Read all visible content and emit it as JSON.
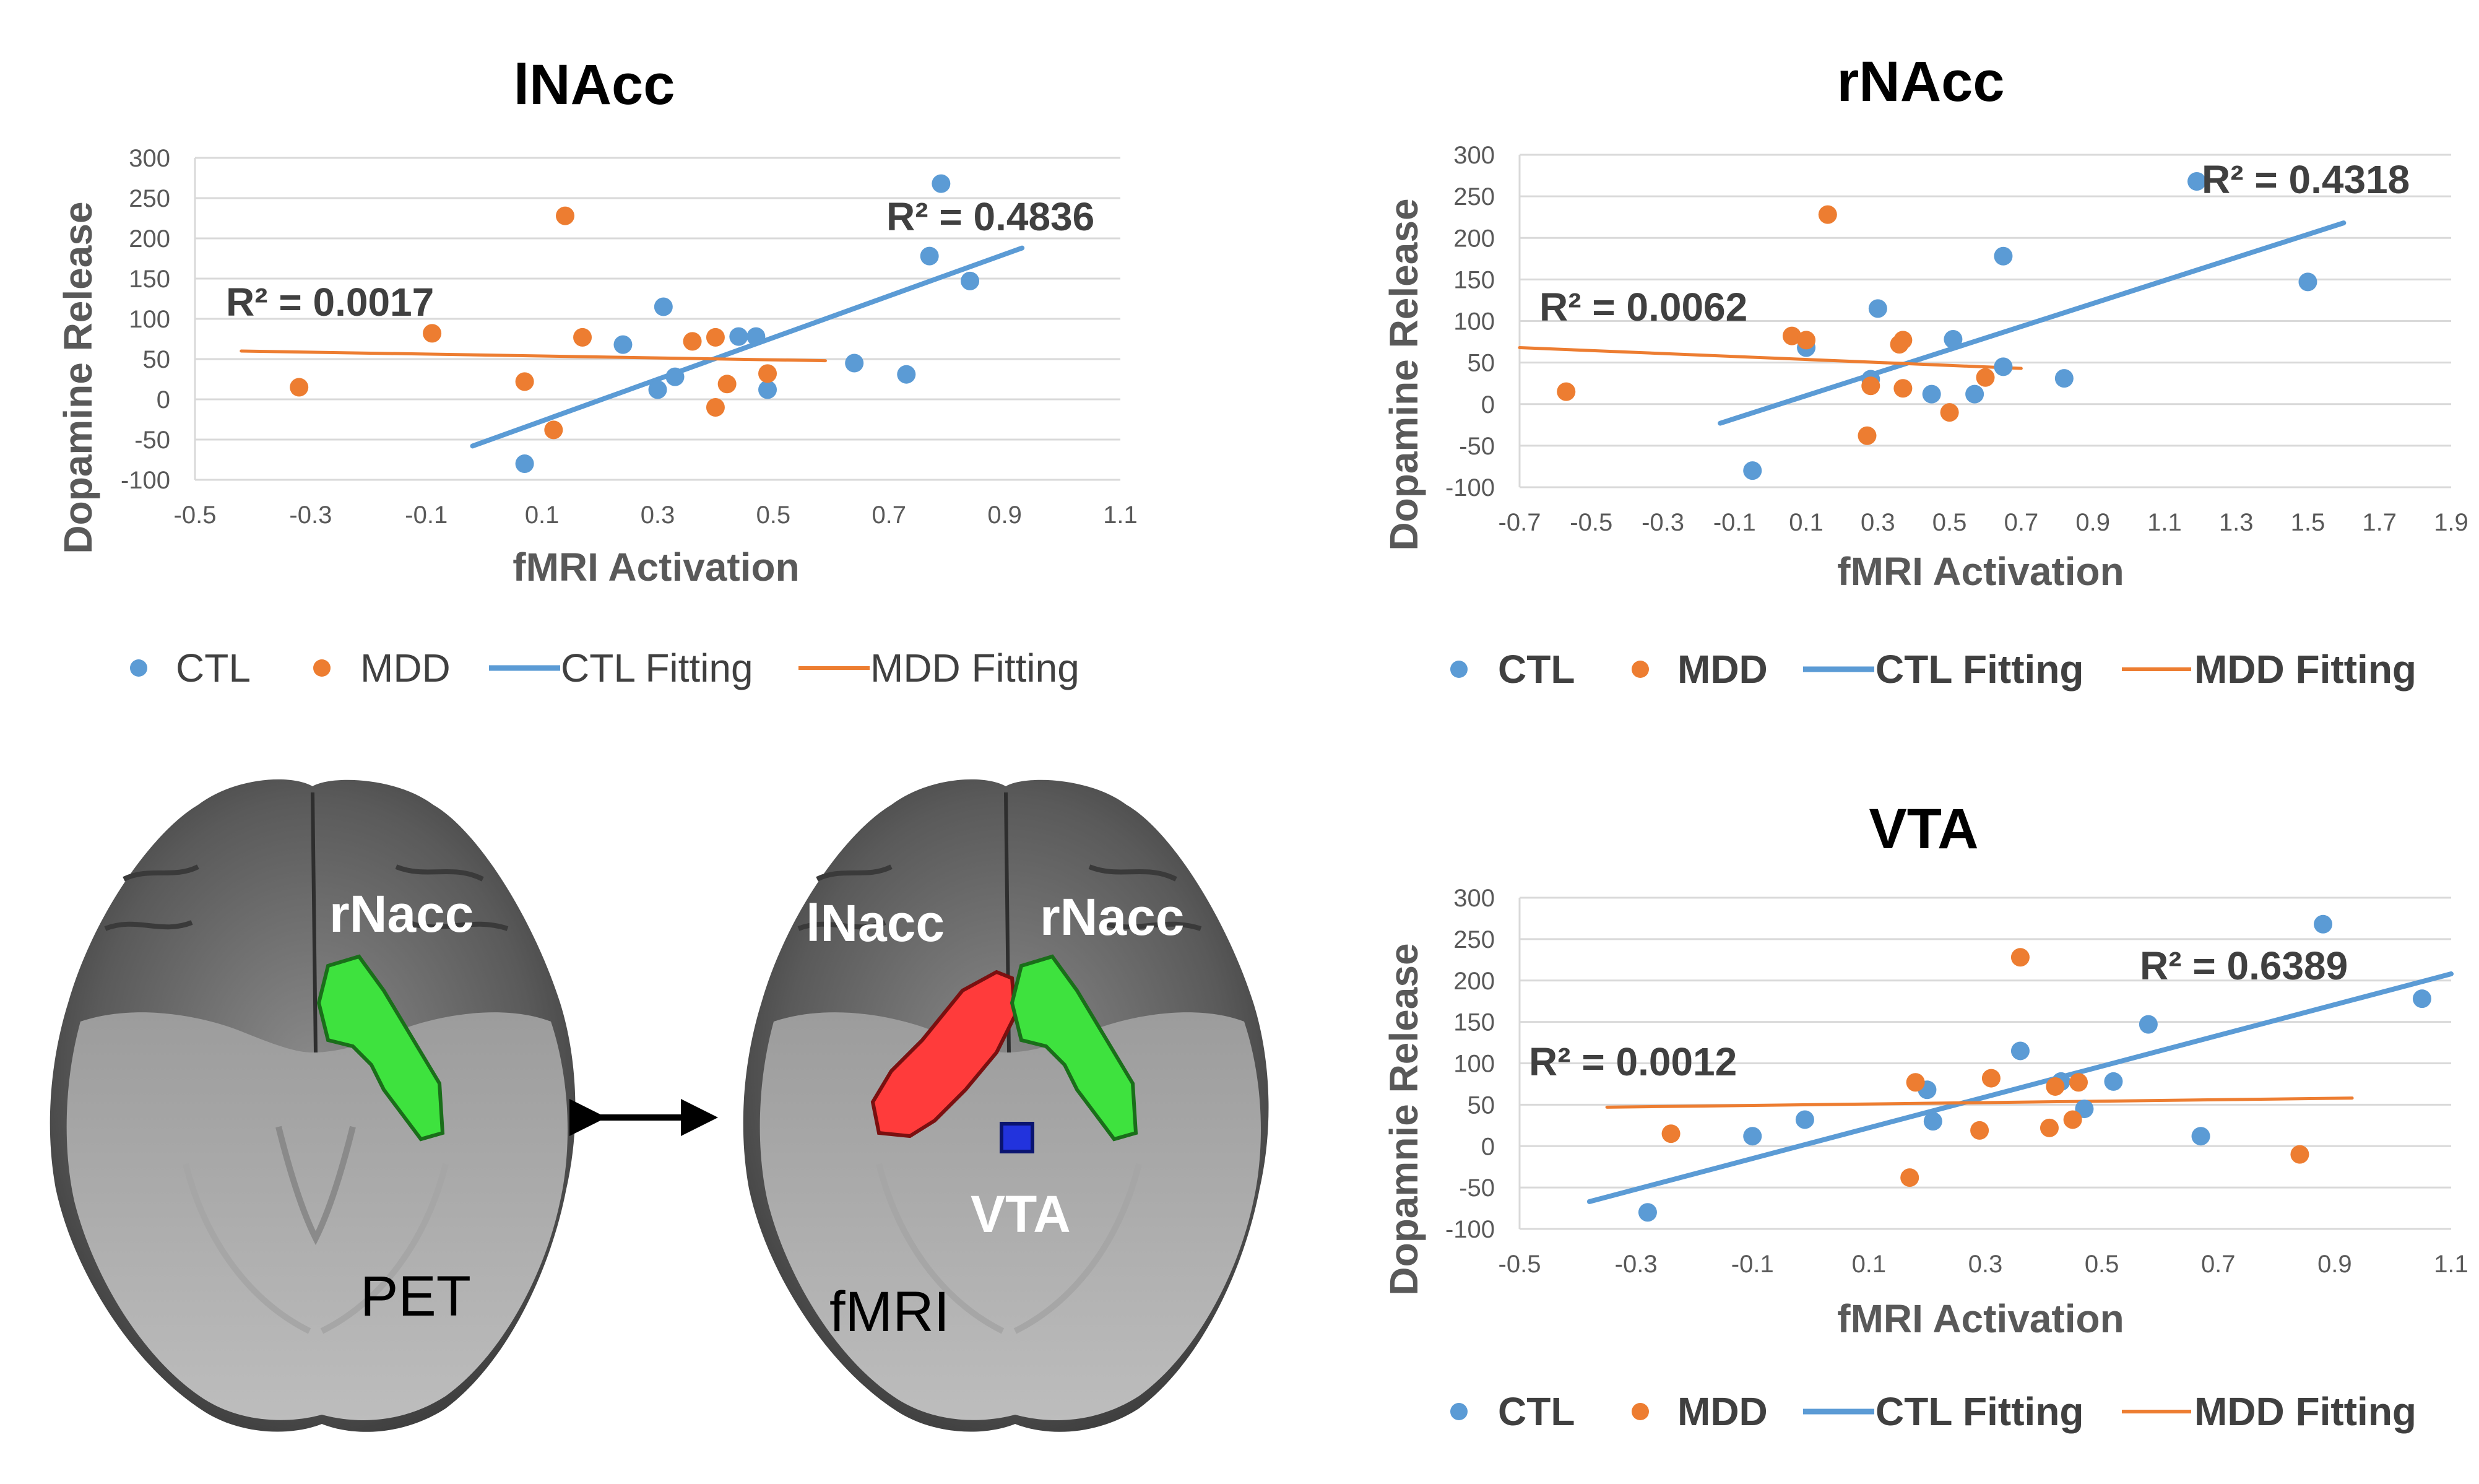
{
  "colors": {
    "ctl": "#5B9BD5",
    "mdd": "#ED7D31",
    "grid": "#D9D9D9",
    "axis_text": "#595959"
  },
  "chart_data": [
    {
      "type": "scatter",
      "title": "lNAcc",
      "xlabel": "fMRI Activation",
      "ylabel": "Dopamine Release",
      "xlim": [
        -0.5,
        1.1
      ],
      "ylim": [
        -100,
        300
      ],
      "xticks": [
        -0.5,
        -0.3,
        -0.1,
        0.1,
        0.3,
        0.5,
        0.7,
        0.9,
        1.1
      ],
      "xtick_labels": [
        "-0.5",
        "-0.3",
        "-0.1",
        "0.1",
        "0.3",
        "0.5",
        "0.7",
        "0.9",
        "1.1"
      ],
      "yticks": [
        -100,
        -50,
        0,
        50,
        100,
        150,
        200,
        250,
        300
      ],
      "ytick_labels": [
        "-100",
        "-50",
        "0",
        "50",
        "100",
        "150",
        "200",
        "250",
        "300"
      ],
      "series": [
        {
          "name": "CTL",
          "kind": "points",
          "x": [
            0.07,
            0.24,
            0.3,
            0.31,
            0.33,
            0.44,
            0.47,
            0.49,
            0.64,
            0.73,
            0.77,
            0.79,
            0.84
          ],
          "y": [
            -80,
            68,
            12,
            115,
            28,
            78,
            78,
            12,
            45,
            31,
            178,
            268,
            147
          ]
        },
        {
          "name": "MDD",
          "kind": "points",
          "x": [
            -0.32,
            -0.09,
            0.07,
            0.12,
            0.14,
            0.17,
            0.36,
            0.4,
            0.4,
            0.42,
            0.49
          ],
          "y": [
            15,
            82,
            22,
            -38,
            228,
            77,
            72,
            -10,
            77,
            19,
            32
          ]
        },
        {
          "name": "CTL Fitting",
          "kind": "line",
          "x": [
            -0.02,
            0.93
          ],
          "y": [
            -58,
            188
          ]
        },
        {
          "name": "MDD Fitting",
          "kind": "line",
          "x": [
            -0.42,
            0.59
          ],
          "y": [
            60,
            48
          ]
        }
      ],
      "r2_ctl": "R² = 0.4836",
      "r2_mdd": "R² = 0.0017",
      "legend": [
        "CTL",
        "MDD",
        "CTL Fitting",
        "MDD Fitting"
      ]
    },
    {
      "type": "scatter",
      "title": "rNAcc",
      "xlabel": "fMRI Activation",
      "ylabel": "Dopamine Release",
      "xlim": [
        -0.7,
        1.9
      ],
      "ylim": [
        -100,
        300
      ],
      "xticks": [
        -0.7,
        -0.5,
        -0.3,
        -0.1,
        0.1,
        0.3,
        0.5,
        0.7,
        0.9,
        1.1,
        1.3,
        1.5,
        1.7,
        1.9
      ],
      "xtick_labels": [
        "-0.7",
        "-0.5",
        "-0.3",
        "-0.1",
        "0.1",
        "0.3",
        "0.5",
        "0.7",
        "0.9",
        "1.1",
        "1.3",
        "1.5",
        "1.7",
        "1.9"
      ],
      "yticks": [
        -100,
        -50,
        0,
        50,
        100,
        150,
        200,
        250,
        300
      ],
      "ytick_labels": [
        "-100",
        "-50",
        "0",
        "50",
        "100",
        "150",
        "200",
        "250",
        "300"
      ],
      "series": [
        {
          "name": "CTL",
          "kind": "points",
          "x": [
            -0.05,
            0.1,
            0.28,
            0.3,
            0.45,
            0.51,
            0.57,
            0.65,
            0.65,
            0.82,
            1.19,
            1.5
          ],
          "y": [
            -80,
            68,
            30,
            115,
            12,
            78,
            12,
            178,
            45,
            31,
            268,
            147
          ]
        },
        {
          "name": "MDD",
          "kind": "points",
          "x": [
            -0.57,
            0.06,
            0.1,
            0.16,
            0.27,
            0.28,
            0.36,
            0.37,
            0.37,
            0.5,
            0.6
          ],
          "y": [
            15,
            82,
            77,
            228,
            -38,
            22,
            72,
            77,
            19,
            -10,
            32
          ]
        },
        {
          "name": "CTL Fitting",
          "kind": "line",
          "x": [
            -0.14,
            1.6
          ],
          "y": [
            -23,
            218
          ]
        },
        {
          "name": "MDD Fitting",
          "kind": "line",
          "x": [
            -0.7,
            0.7
          ],
          "y": [
            68,
            43
          ]
        }
      ],
      "r2_ctl": "R² = 0.4318",
      "r2_mdd": "R² = 0.0062",
      "legend": [
        "CTL",
        "MDD",
        "CTL Fitting",
        "MDD Fitting"
      ]
    },
    {
      "type": "scatter",
      "title": "VTA",
      "xlabel": "fMRI Activation",
      "ylabel": "Dopamnie Release",
      "xlim": [
        -0.5,
        1.1
      ],
      "ylim": [
        -100,
        300
      ],
      "xticks": [
        -0.5,
        -0.3,
        -0.1,
        0.1,
        0.3,
        0.5,
        0.7,
        0.9,
        1.1
      ],
      "xtick_labels": [
        "-0.5",
        "-0.3",
        "-0.1",
        "0.1",
        "0.3",
        "0.5",
        "0.7",
        "0.9",
        "1.1"
      ],
      "yticks": [
        -100,
        -50,
        0,
        50,
        100,
        150,
        200,
        250,
        300
      ],
      "ytick_labels": [
        "-100",
        "-50",
        "0",
        "50",
        "100",
        "150",
        "200",
        "250",
        "300"
      ],
      "series": [
        {
          "name": "CTL",
          "kind": "points",
          "x": [
            -0.28,
            -0.1,
            -0.01,
            0.2,
            0.21,
            0.36,
            0.43,
            0.47,
            0.52,
            0.58,
            0.67,
            0.88,
            1.05
          ],
          "y": [
            -80,
            12,
            32,
            68,
            30,
            115,
            78,
            45,
            78,
            147,
            12,
            268,
            178
          ]
        },
        {
          "name": "MDD",
          "kind": "points",
          "x": [
            -0.24,
            0.17,
            0.18,
            0.29,
            0.31,
            0.36,
            0.41,
            0.42,
            0.45,
            0.46,
            0.84
          ],
          "y": [
            15,
            -38,
            77,
            19,
            82,
            228,
            22,
            72,
            32,
            77,
            -10
          ]
        },
        {
          "name": "CTL Fitting",
          "kind": "line",
          "x": [
            -0.38,
            1.1
          ],
          "y": [
            -67,
            208
          ]
        },
        {
          "name": "MDD Fitting",
          "kind": "line",
          "x": [
            -0.35,
            0.93
          ],
          "y": [
            47,
            58
          ]
        }
      ],
      "r2_ctl": "R² = 0.6389",
      "r2_mdd": "R² = 0.0012",
      "legend": [
        "CTL",
        "MDD",
        "CTL Fitting",
        "MDD Fitting"
      ]
    }
  ],
  "brain": {
    "pet_labels": {
      "rnacc": "rNacc",
      "modality": "PET"
    },
    "fmri_labels": {
      "lnacc": "lNacc",
      "rnacc": "rNacc",
      "vta": "VTA",
      "modality": "fMRI"
    },
    "arrow": "double-arrow-icon"
  }
}
